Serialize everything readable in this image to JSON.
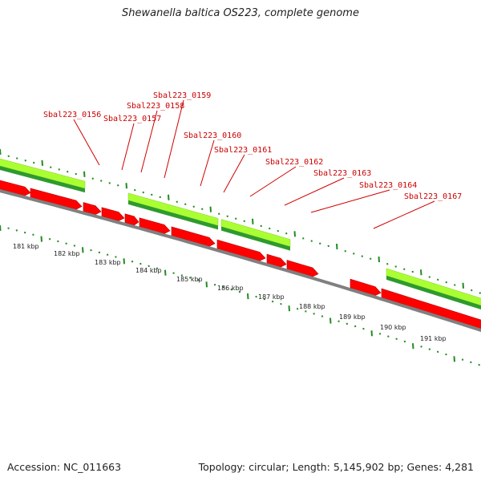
{
  "title": "Shewanella baltica OS223, complete genome",
  "accession": "Accession: NC_011663",
  "summary": "Topology: circular; Length: 5,145,902 bp; Genes: 4,281",
  "colors": {
    "cds": "#ff0000",
    "cds_shade": "#b30000",
    "gene_light": "#aaff33",
    "gene_dark": "#2e9a2e",
    "backbone": "#808080",
    "label": "#cc0000",
    "ticks": "#228b22"
  },
  "gene_labels": [
    "Sbal223_0156",
    "Sbal223_0157",
    "Sbal223_0158",
    "Sbal223_0159",
    "Sbal223_0160",
    "Sbal223_0161",
    "Sbal223_0162",
    "Sbal223_0163",
    "Sbal223_0164",
    "Sbal223_0167"
  ],
  "kbp_labels": [
    "181 kbp",
    "182 kbp",
    "183 kbp",
    "184 kbp",
    "185 kbp",
    "186 kbp",
    "187 kbp",
    "188 kbp",
    "189 kbp",
    "190 kbp",
    "191 kbp"
  ]
}
